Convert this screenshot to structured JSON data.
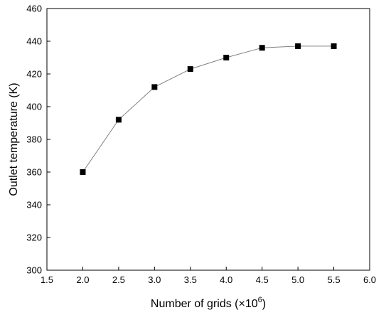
{
  "chart_data": {
    "type": "line",
    "title": "",
    "xlabel": "Number of grids (×10",
    "xlabel_exponent": "6",
    "xlabel_suffix": ")",
    "ylabel": "Outlet temperature (K)",
    "xlim": [
      1.5,
      6.0
    ],
    "ylim": [
      300,
      460
    ],
    "xticks": [
      1.5,
      2.0,
      2.5,
      3.0,
      3.5,
      4.0,
      4.5,
      5.0,
      5.5,
      6.0
    ],
    "xtick_labels": [
      "1.5",
      "2.0",
      "2.5",
      "3.0",
      "3.5",
      "4.0",
      "4.5",
      "5.0",
      "5.5",
      "6.0"
    ],
    "yticks": [
      300,
      320,
      340,
      360,
      380,
      400,
      420,
      440,
      460
    ],
    "ytick_labels": [
      "300",
      "320",
      "340",
      "360",
      "380",
      "400",
      "420",
      "440",
      "460"
    ],
    "grid": false,
    "legend": "none",
    "marker": "square",
    "line_color": "#808080",
    "marker_color": "#000000",
    "series": [
      {
        "x": [
          2.0,
          2.5,
          3.0,
          3.5,
          4.0,
          4.5,
          5.0,
          5.5
        ],
        "values": [
          360,
          392,
          412,
          423,
          430,
          436,
          437,
          437
        ]
      }
    ]
  }
}
